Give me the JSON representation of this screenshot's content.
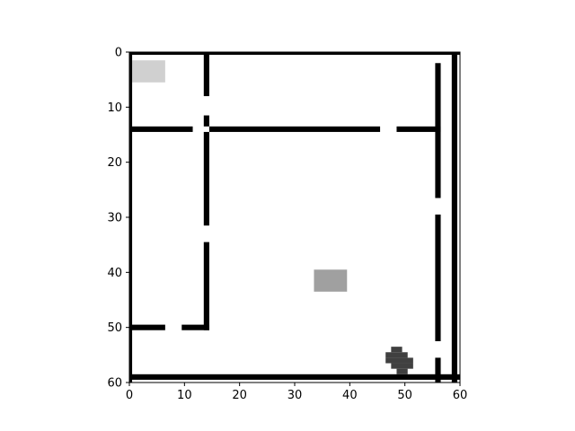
{
  "chart_data": {
    "type": "heatmap",
    "title": "",
    "xlabel": "",
    "ylabel": "",
    "xlim": [
      0,
      60
    ],
    "ylim": [
      60,
      0
    ],
    "x_ticks": [
      "0",
      "10",
      "20",
      "30",
      "40",
      "50",
      "60"
    ],
    "y_ticks": [
      "0",
      "10",
      "20",
      "30",
      "40",
      "50",
      "60"
    ],
    "grid": false,
    "colors": {
      "wall": "#000000",
      "goal": "#d0d0d0",
      "box": "#a0a0a0",
      "agent": "#404040",
      "floor": "#ffffff"
    },
    "walls": [
      {
        "x0": 0,
        "x1": 11.5,
        "y0": 13.5,
        "y1": 14.5
      },
      {
        "x0": 14.5,
        "x1": 45.5,
        "y0": 13.5,
        "y1": 14.5
      },
      {
        "x0": 48.5,
        "x1": 56.5,
        "y0": 13.5,
        "y1": 14.5
      },
      {
        "x0": 13.5,
        "x1": 14.5,
        "y0": 0,
        "y1": 8
      },
      {
        "x0": 13.5,
        "x1": 14.5,
        "y0": 11.5,
        "y1": 13.5
      },
      {
        "x0": 13.5,
        "x1": 14.5,
        "y0": 14.5,
        "y1": 31.5
      },
      {
        "x0": 13.5,
        "x1": 14.5,
        "y0": 34.5,
        "y1": 50.5
      },
      {
        "x0": 0,
        "x1": 6.5,
        "y0": 49.5,
        "y1": 50.5
      },
      {
        "x0": 9.5,
        "x1": 14.5,
        "y0": 49.5,
        "y1": 50.5
      },
      {
        "x0": 55.5,
        "x1": 56.5,
        "y0": 2,
        "y1": 26.5
      },
      {
        "x0": 55.5,
        "x1": 56.5,
        "y0": 29.5,
        "y1": 52.5
      },
      {
        "x0": 55.5,
        "x1": 56.5,
        "y0": 55.5,
        "y1": 60
      },
      {
        "x0": 58.5,
        "x1": 59.5,
        "y0": 0,
        "y1": 60
      },
      {
        "x0": 0,
        "x1": 60,
        "y0": 58.5,
        "y1": 59.5
      },
      {
        "x0": 0,
        "x1": 0.5,
        "y0": 0,
        "y1": 60
      },
      {
        "x0": 0,
        "x1": 60,
        "y0": 0,
        "y1": 0.5
      }
    ],
    "goal": {
      "x0": 0.5,
      "x1": 6.5,
      "y0": 1.5,
      "y1": 5.5
    },
    "box": {
      "x0": 33.5,
      "x1": 39.5,
      "y0": 39.5,
      "y1": 43.5
    },
    "agent": [
      {
        "x0": 47.5,
        "x1": 49.5,
        "y0": 53.5,
        "y1": 54.5
      },
      {
        "x0": 46.5,
        "x1": 50.5,
        "y0": 54.5,
        "y1": 55.5
      },
      {
        "x0": 46.5,
        "x1": 51.5,
        "y0": 55.5,
        "y1": 56.5
      },
      {
        "x0": 47.5,
        "x1": 51.5,
        "y0": 56.5,
        "y1": 57.5
      },
      {
        "x0": 48.5,
        "x1": 50.5,
        "y0": 57.5,
        "y1": 58.5
      }
    ]
  }
}
